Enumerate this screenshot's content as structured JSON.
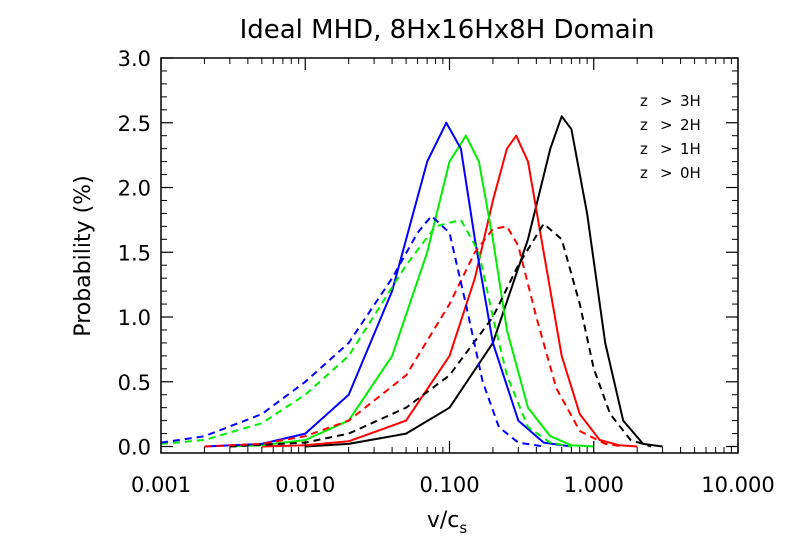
{
  "chart_data": {
    "type": "line",
    "title": "Ideal MHD, 8Hx16Hx8H Domain",
    "xlabel": "v/c",
    "xlabel_sub": "s",
    "ylabel": "Probability (%)",
    "xscale": "log",
    "xlim": [
      0.001,
      10.0
    ],
    "ylim": [
      -0.05,
      3.0
    ],
    "x_ticks": [
      0.001,
      0.01,
      0.1,
      1.0,
      10.0
    ],
    "x_tick_labels": [
      "0.001",
      "0.010",
      "0.100",
      "1.000",
      "10.000"
    ],
    "y_ticks": [
      0.0,
      0.5,
      1.0,
      1.5,
      2.0,
      2.5,
      3.0
    ],
    "y_tick_labels": [
      "0.0",
      "0.5",
      "1.0",
      "1.5",
      "2.0",
      "2.5",
      "3.0"
    ],
    "grid": false,
    "legend_position": "top-right",
    "legend": [
      {
        "z": "z",
        "op": ">",
        "h": "3H",
        "color": "#000000"
      },
      {
        "z": "z",
        "op": ">",
        "h": "2H",
        "color": "#ff0000"
      },
      {
        "z": "z",
        "op": ">",
        "h": "1H",
        "color": "#00ee00"
      },
      {
        "z": "z",
        "op": ">",
        "h": "0H",
        "color": "#0000ff"
      }
    ],
    "series": [
      {
        "name": "z > 3H",
        "style": "solid",
        "color": "#000000",
        "x": [
          0.01,
          0.02,
          0.05,
          0.1,
          0.2,
          0.35,
          0.5,
          0.6,
          0.7,
          0.9,
          1.2,
          1.6,
          2.2,
          3.0
        ],
        "y": [
          0.0,
          0.02,
          0.1,
          0.3,
          0.8,
          1.6,
          2.3,
          2.55,
          2.45,
          1.8,
          0.8,
          0.2,
          0.02,
          0.0
        ]
      },
      {
        "name": "z > 2H",
        "style": "solid",
        "color": "#ff0000",
        "x": [
          0.005,
          0.01,
          0.02,
          0.05,
          0.1,
          0.15,
          0.2,
          0.25,
          0.29,
          0.35,
          0.45,
          0.6,
          0.8,
          1.1,
          1.5,
          2.0
        ],
        "y": [
          0.0,
          0.01,
          0.04,
          0.2,
          0.7,
          1.3,
          1.9,
          2.3,
          2.4,
          2.2,
          1.5,
          0.7,
          0.25,
          0.05,
          0.01,
          0.0
        ]
      },
      {
        "name": "z > 1H",
        "style": "solid",
        "color": "#00ee00",
        "x": [
          0.003,
          0.005,
          0.01,
          0.02,
          0.04,
          0.07,
          0.1,
          0.13,
          0.16,
          0.2,
          0.25,
          0.35,
          0.5,
          0.7,
          1.0
        ],
        "y": [
          0.0,
          0.01,
          0.05,
          0.2,
          0.7,
          1.5,
          2.2,
          2.4,
          2.2,
          1.6,
          0.9,
          0.3,
          0.08,
          0.01,
          0.0
        ]
      },
      {
        "name": "z > 0H",
        "style": "solid",
        "color": "#0000ff",
        "x": [
          0.002,
          0.005,
          0.01,
          0.02,
          0.04,
          0.07,
          0.095,
          0.12,
          0.15,
          0.2,
          0.3,
          0.45,
          0.7
        ],
        "y": [
          0.0,
          0.02,
          0.1,
          0.4,
          1.2,
          2.2,
          2.5,
          2.3,
          1.6,
          0.8,
          0.2,
          0.03,
          0.0
        ]
      },
      {
        "name": "z > 3H",
        "style": "dashed",
        "color": "#000000",
        "x": [
          0.003,
          0.01,
          0.02,
          0.05,
          0.1,
          0.2,
          0.3,
          0.45,
          0.6,
          0.8,
          1.0,
          1.3,
          1.8,
          2.5
        ],
        "y": [
          0.0,
          0.03,
          0.1,
          0.3,
          0.55,
          1.0,
          1.4,
          1.72,
          1.6,
          1.1,
          0.6,
          0.25,
          0.05,
          0.0
        ]
      },
      {
        "name": "z > 2H",
        "style": "dashed",
        "color": "#ff0000",
        "x": [
          0.002,
          0.005,
          0.01,
          0.02,
          0.05,
          0.1,
          0.15,
          0.2,
          0.25,
          0.3,
          0.4,
          0.55,
          0.8,
          1.2,
          1.6
        ],
        "y": [
          0.0,
          0.02,
          0.08,
          0.2,
          0.55,
          1.1,
          1.5,
          1.68,
          1.7,
          1.55,
          1.0,
          0.45,
          0.12,
          0.02,
          0.0
        ]
      },
      {
        "name": "z > 1H",
        "style": "dashed",
        "color": "#00ee00",
        "x": [
          0.001,
          0.002,
          0.005,
          0.01,
          0.02,
          0.05,
          0.08,
          0.12,
          0.16,
          0.2,
          0.25,
          0.35,
          0.5,
          0.7
        ],
        "y": [
          0.02,
          0.05,
          0.18,
          0.4,
          0.7,
          1.4,
          1.7,
          1.75,
          1.5,
          1.0,
          0.55,
          0.15,
          0.03,
          0.0
        ]
      },
      {
        "name": "z > 0H",
        "style": "dashed",
        "color": "#0000ff",
        "x": [
          0.001,
          0.002,
          0.005,
          0.01,
          0.02,
          0.04,
          0.06,
          0.075,
          0.1,
          0.13,
          0.17,
          0.22,
          0.3,
          0.45
        ],
        "y": [
          0.03,
          0.08,
          0.25,
          0.5,
          0.8,
          1.3,
          1.65,
          1.78,
          1.65,
          1.1,
          0.5,
          0.15,
          0.03,
          0.0
        ]
      }
    ]
  }
}
